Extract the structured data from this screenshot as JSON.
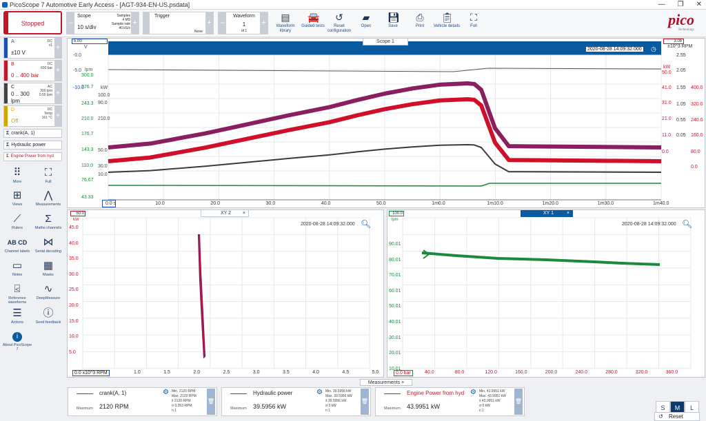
{
  "app": {
    "title": "PicoScope 7 Automotive Early Access - [AGT-934-EN-US.psdata]",
    "logo": "pico",
    "logo_sub": "Technology"
  },
  "toolbar": {
    "run_label": "Stopped",
    "scope_label": "Scope",
    "scope_value": "10 s/div",
    "samples_label": "Samples",
    "samples_value": "4 MS",
    "sample_rate_label": "Sample rate",
    "sample_rate_value": "40 kS/s",
    "trigger_label": "Trigger",
    "trigger_value": "None",
    "waveform_label": "Waveform",
    "waveform_value": "1",
    "waveform_of": "of 1",
    "tools": [
      "Waveform library",
      "Guided tests",
      "Reset configuration",
      "Open",
      "Save",
      "Print",
      "Vehicle details",
      "Full"
    ]
  },
  "channels": [
    {
      "name": "A",
      "range": "±10 V",
      "coupling": "DC",
      "meta": "x1",
      "color": "#1b4fb3"
    },
    {
      "name": "B",
      "range": "0 .. 400 bar",
      "coupling": "DC",
      "meta": "600 bar",
      "color": "#c4172a"
    },
    {
      "name": "C",
      "range": "0 .. 300",
      "unit": "lpm",
      "coupling": "AC",
      "meta": "300 lpm",
      "meta2": "0.55 lpm",
      "color": "#444444"
    },
    {
      "name": "D",
      "range": "Off",
      "coupling": "DC",
      "meta": "Temp",
      "meta2": "161 °C",
      "color": "#d8a400"
    }
  ],
  "math": [
    "crank(A, 1)",
    "Hydraulic power",
    "Engine Power from hyd"
  ],
  "side_tools": [
    [
      "More",
      "Full"
    ],
    [
      "Views",
      "Measurements"
    ],
    [
      "Rulers",
      "Maths channels"
    ],
    [
      "Channel labels",
      "Serial decoding"
    ],
    [
      "Notes",
      "Masks"
    ],
    [
      "Reference waveforms",
      "DeepMeasure"
    ],
    [
      "Actions",
      "Send feedback"
    ],
    [
      "About PicoScope 7",
      ""
    ]
  ],
  "scope1": {
    "tab": "Scope 1",
    "timestamp": "2020-08-28 14:09:32.000",
    "left_top_box": "5.00",
    "right_top_box": "3.05",
    "x_labels": [
      "0.0 s",
      "10.0",
      "20.0",
      "30.0",
      "40.0",
      "50.0",
      "1m0.0",
      "1m10.0",
      "1m20.0",
      "1m30.0",
      "1m40.0"
    ],
    "axisV": [
      "V",
      "-0.0",
      "-5.0",
      "-10.0"
    ],
    "axisLpm": [
      "lpm",
      "300.0",
      "276.7",
      "243.3",
      "210.0",
      "176.7",
      "143.3",
      "110.0",
      "76.67",
      "43.33"
    ],
    "axisKW": [
      "kW",
      "100.0",
      "90.0",
      "210.0",
      "50.0",
      "30.0",
      "10.0",
      "0.0"
    ],
    "axisRPM": [
      "±10^3 RPM",
      "2.55",
      "2.05",
      "1.55",
      "1.05",
      "0.55",
      "0.05"
    ],
    "axisKW2": [
      "kW",
      "50.0",
      "41.0",
      "31.0",
      "21.0",
      "11.0",
      "0.0"
    ],
    "axisBar": [
      "400.0",
      "320.0",
      "240.0",
      "160.0",
      "80.0",
      "0.0"
    ]
  },
  "xy2": {
    "tab": "XY 2",
    "timestamp": "2020-08-28 14:09:32.000",
    "corner": "50.0",
    "x_unit": "0.0 x10^3 RPM",
    "x_labels": [
      "1.0",
      "1.5",
      "2.0",
      "2.5",
      "3.0",
      "3.5",
      "4.0",
      "4.5",
      "5.0"
    ],
    "y_unit": "kW",
    "y_labels": [
      "45.0",
      "40.0",
      "35.0",
      "30.0",
      "25.0",
      "20.0",
      "15.0",
      "10.0",
      "5.0"
    ]
  },
  "xy1": {
    "tab": "XY 1",
    "timestamp": "2020-08-28 14:09:32.000",
    "corner": "100.0",
    "x_unit": "0.0 bar",
    "x_labels": [
      "40.0",
      "80.0",
      "120.0",
      "160.0",
      "200.0",
      "240.0",
      "280.0",
      "320.0",
      "360.0"
    ],
    "y_unit": "lpm",
    "y_labels": [
      "90.01",
      "80.01",
      "70.01",
      "60.01",
      "50.01",
      "40.01",
      "30.01",
      "20.01",
      "10.01"
    ]
  },
  "measurements": {
    "tab": "Measurements",
    "items": [
      {
        "name": "crank(A, 1)",
        "type": "Maximum",
        "value": "2120 RPM",
        "stats": [
          "Min.  2120 RPM",
          "Max.  2120 RPM",
          "x̄     2120 RPM",
          "σ      0.353 RPM",
          "n      1"
        ]
      },
      {
        "name": "Hydraulic power",
        "type": "Maximum",
        "value": "39.5956 kW",
        "stats": [
          "Min.  39.5956 kW",
          "Max.  39.5956 kW",
          "x̄     39.5956 kW",
          "σ      0 kW",
          "n      1"
        ]
      },
      {
        "name": "Engine Power from hyd",
        "type": "Maximum",
        "value": "43.9951 kW",
        "stats": [
          "Min.  43.9951 kW",
          "Max.  43.9951 kW",
          "x̄     43.9951 kW",
          "σ      0 kW",
          "n      1"
        ]
      }
    ]
  },
  "size_buttons": [
    "S",
    "M",
    "L"
  ],
  "reset_label": "Reset"
}
